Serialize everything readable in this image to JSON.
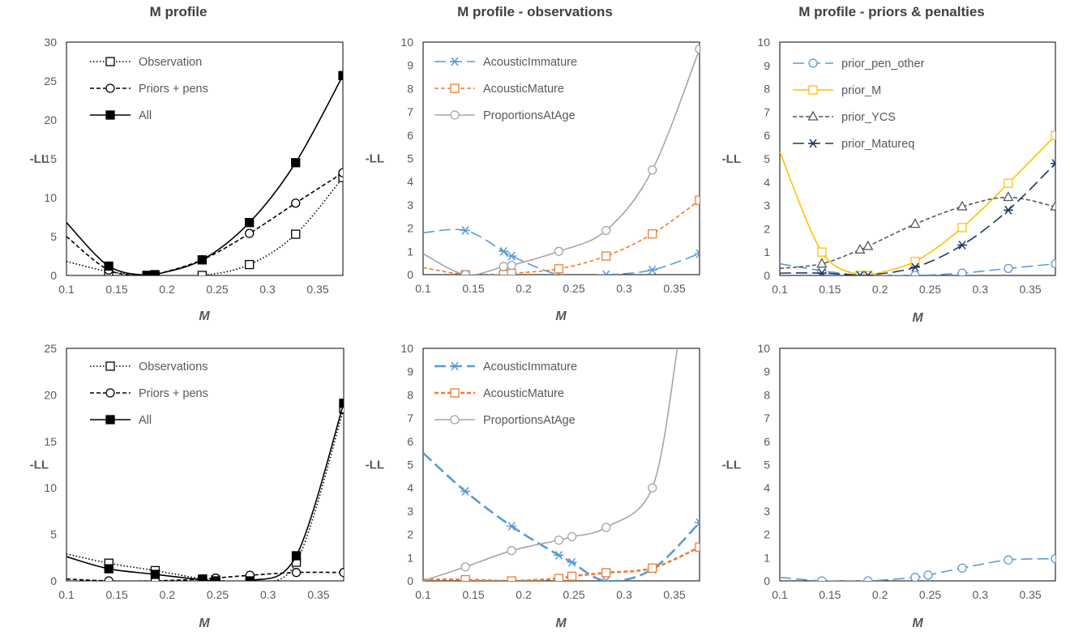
{
  "chart_data": [
    {
      "type": "line",
      "title": "M profile",
      "xlabel": "M",
      "ylabel": "-LL",
      "xlim": [
        0.1,
        0.375
      ],
      "ylim": [
        0,
        30
      ],
      "xticks": [
        "0.1",
        "0.15",
        "0.2",
        "0.25",
        "0.3",
        "0.35"
      ],
      "yticks": [
        "0",
        "5",
        "10",
        "15",
        "20",
        "25",
        "30"
      ],
      "legend": "top-left",
      "series": [
        {
          "name": "Observation",
          "color": "#000000",
          "dash": "dotted",
          "marker": "square-open",
          "markerFill": "#ffffff",
          "x": [
            0.1,
            0.142,
            0.18,
            0.188,
            0.235,
            0.282,
            0.328,
            0.375
          ],
          "y": [
            1.8,
            0.5,
            0.0,
            0.0,
            0.0,
            1.4,
            5.3,
            12.6
          ]
        },
        {
          "name": "Priors + pens",
          "color": "#000000",
          "dash": "dashed",
          "marker": "circle-open",
          "markerFill": "#ffffff",
          "x": [
            0.1,
            0.142,
            0.18,
            0.188,
            0.235,
            0.282,
            0.328,
            0.375
          ],
          "y": [
            5.0,
            0.7,
            0.0,
            0.1,
            2.0,
            5.4,
            9.3,
            13.2
          ]
        },
        {
          "name": "All",
          "color": "#000000",
          "dash": "solid",
          "marker": "square-filled",
          "markerFill": "#000000",
          "x": [
            0.1,
            0.142,
            0.18,
            0.188,
            0.235,
            0.282,
            0.328,
            0.375
          ],
          "y": [
            6.8,
            1.2,
            0.0,
            0.1,
            2.0,
            6.8,
            14.5,
            25.7
          ]
        }
      ]
    },
    {
      "type": "line",
      "title": "M profile - observations",
      "xlabel": "M",
      "ylabel": "-LL",
      "xlim": [
        0.1,
        0.375
      ],
      "ylim": [
        0,
        10
      ],
      "xticks": [
        "0.1",
        "0.15",
        "0.2",
        "0.25",
        "0.3",
        "0.35"
      ],
      "yticks": [
        "0",
        "1",
        "2",
        "3",
        "4",
        "5",
        "6",
        "7",
        "8",
        "9",
        "10"
      ],
      "legend": "top-left",
      "series": [
        {
          "name": "AcousticImmature",
          "color": "#5b9bd5",
          "dash": "longdash",
          "marker": "asterisk",
          "markerFill": "none",
          "x": [
            0.1,
            0.142,
            0.18,
            0.188,
            0.235,
            0.282,
            0.328,
            0.375
          ],
          "y": [
            1.8,
            1.9,
            1.0,
            0.8,
            0.0,
            0.0,
            0.2,
            0.9
          ]
        },
        {
          "name": "AcousticMature",
          "color": "#ed7d31",
          "dash": "dashed",
          "marker": "square-open",
          "markerFill": "#ffffff",
          "x": [
            0.1,
            0.142,
            0.18,
            0.188,
            0.235,
            0.282,
            0.328,
            0.375
          ],
          "y": [
            0.3,
            0.0,
            0.0,
            0.05,
            0.25,
            0.8,
            1.75,
            3.2
          ]
        },
        {
          "name": "ProportionsAtAge",
          "color": "#a5a5a5",
          "dash": "solid",
          "marker": "circle-open",
          "markerFill": "#ffffff",
          "x": [
            0.1,
            0.142,
            0.18,
            0.188,
            0.235,
            0.282,
            0.328,
            0.375
          ],
          "y": [
            0.9,
            0.0,
            0.35,
            0.4,
            1.0,
            1.9,
            4.5,
            9.7
          ]
        }
      ]
    },
    {
      "type": "line",
      "title": "M profile - priors & penalties",
      "xlabel": "M",
      "ylabel": "-LL",
      "xlim": [
        0.1,
        0.375
      ],
      "ylim": [
        0,
        10
      ],
      "xticks": [
        "0.1",
        "0.15",
        "0.2",
        "0.25",
        "0.3",
        "0.35"
      ],
      "yticks": [
        "0",
        "1",
        "2",
        "3",
        "4",
        "5",
        "6",
        "7",
        "8",
        "9",
        "10"
      ],
      "legend": "top-left",
      "series": [
        {
          "name": "prior_pen_other",
          "color": "#5b9bd5",
          "dash": "longdash",
          "marker": "circle-open",
          "markerFill": "#ffffff",
          "x": [
            0.1,
            0.142,
            0.18,
            0.188,
            0.235,
            0.282,
            0.328,
            0.375
          ],
          "y": [
            0.5,
            0.2,
            0.0,
            0.0,
            0.0,
            0.1,
            0.3,
            0.5
          ]
        },
        {
          "name": "prior_M",
          "color": "#ffc000",
          "dash": "solid",
          "marker": "square-open",
          "markerFill": "#ffffff",
          "x": [
            0.1,
            0.142,
            0.18,
            0.188,
            0.235,
            0.282,
            0.328,
            0.375
          ],
          "y": [
            5.3,
            1.0,
            0.0,
            0.0,
            0.6,
            2.05,
            3.95,
            6.0
          ]
        },
        {
          "name": "prior_YCS",
          "color": "#595959",
          "dash": "dashed",
          "marker": "triangle-open",
          "markerFill": "#ffffff",
          "x": [
            0.1,
            0.142,
            0.18,
            0.188,
            0.235,
            0.282,
            0.328,
            0.375
          ],
          "y": [
            0.3,
            0.5,
            1.1,
            1.25,
            2.2,
            2.95,
            3.35,
            2.95
          ]
        },
        {
          "name": "prior_Matureq",
          "color": "#203864",
          "dash": "longdash",
          "marker": "asterisk",
          "markerFill": "none",
          "x": [
            0.1,
            0.142,
            0.18,
            0.188,
            0.235,
            0.282,
            0.328,
            0.375
          ],
          "y": [
            0.1,
            0.1,
            0.0,
            0.0,
            0.35,
            1.3,
            2.8,
            4.8
          ]
        }
      ]
    },
    {
      "type": "line",
      "title": "",
      "xlabel": "M",
      "ylabel": "-LL",
      "xlim": [
        0.1,
        0.375
      ],
      "ylim": [
        0,
        25
      ],
      "xticks": [
        "0.1",
        "0.15",
        "0.2",
        "0.25",
        "0.3",
        "0.35"
      ],
      "yticks": [
        "0",
        "5",
        "10",
        "15",
        "20",
        "25"
      ],
      "legend": "top-left",
      "series": [
        {
          "name": "Observations",
          "color": "#000000",
          "dash": "dotted",
          "marker": "square-open",
          "markerFill": "#ffffff",
          "x": [
            0.1,
            0.142,
            0.188,
            0.235,
            0.248,
            0.282,
            0.328,
            0.375
          ],
          "y": [
            2.9,
            1.9,
            1.1,
            0.2,
            0.1,
            0.0,
            2.0,
            18.5
          ]
        },
        {
          "name": "Priors + pens",
          "color": "#000000",
          "dash": "dashed",
          "marker": "circle-open",
          "markerFill": "#ffffff",
          "x": [
            0.1,
            0.142,
            0.188,
            0.235,
            0.248,
            0.282,
            0.328,
            0.375
          ],
          "y": [
            0.2,
            0.0,
            0.0,
            0.2,
            0.3,
            0.6,
            0.9,
            0.9
          ]
        },
        {
          "name": "All",
          "color": "#000000",
          "dash": "solid",
          "marker": "square-filled",
          "markerFill": "#000000",
          "x": [
            0.1,
            0.142,
            0.188,
            0.235,
            0.248,
            0.282,
            0.328,
            0.375
          ],
          "y": [
            2.6,
            1.3,
            0.7,
            0.1,
            0.0,
            0.0,
            2.7,
            19.1
          ]
        }
      ]
    },
    {
      "type": "line",
      "title": "",
      "xlabel": "M",
      "ylabel": "-LL",
      "xlim": [
        0.1,
        0.375
      ],
      "ylim": [
        0,
        10
      ],
      "xticks": [
        "0.1",
        "0.15",
        "0.2",
        "0.25",
        "0.3",
        "0.35"
      ],
      "yticks": [
        "0",
        "1",
        "2",
        "3",
        "4",
        "5",
        "6",
        "7",
        "8",
        "9",
        "10"
      ],
      "legend": "top-left",
      "series": [
        {
          "name": "AcousticImmature",
          "color": "#5b9bd5",
          "dash": "longdash",
          "marker": "asterisk",
          "markerFill": "none",
          "width": 2.6,
          "x": [
            0.1,
            0.142,
            0.188,
            0.235,
            0.248,
            0.282,
            0.328,
            0.375
          ],
          "y": [
            5.5,
            3.85,
            2.35,
            1.1,
            0.8,
            0.0,
            0.5,
            2.5
          ]
        },
        {
          "name": "AcousticMature",
          "color": "#ed7d31",
          "dash": "dashed",
          "marker": "square-open",
          "markerFill": "#ffffff",
          "width": 2.6,
          "x": [
            0.1,
            0.142,
            0.188,
            0.235,
            0.248,
            0.282,
            0.328,
            0.375
          ],
          "y": [
            0.05,
            0.05,
            0.0,
            0.1,
            0.2,
            0.35,
            0.55,
            1.45
          ]
        },
        {
          "name": "ProportionsAtAge",
          "color": "#a5a5a5",
          "dash": "solid",
          "marker": "circle-open",
          "markerFill": "#ffffff",
          "x": [
            0.1,
            0.142,
            0.188,
            0.235,
            0.248,
            0.282,
            0.328,
            0.353
          ],
          "y": [
            0.0,
            0.6,
            1.3,
            1.75,
            1.9,
            2.3,
            4.0,
            10.0
          ]
        }
      ]
    },
    {
      "type": "line",
      "title": "",
      "xlabel": "M",
      "ylabel": "-LL",
      "xlim": [
        0.1,
        0.375
      ],
      "ylim": [
        0,
        10
      ],
      "xticks": [
        "0.1",
        "0.15",
        "0.2",
        "0.25",
        "0.3",
        "0.35"
      ],
      "yticks": [
        "0",
        "1",
        "2",
        "3",
        "4",
        "5",
        "6",
        "7",
        "8",
        "9",
        "10"
      ],
      "legend": "none",
      "series": [
        {
          "color": "#5b9bd5",
          "dash": "longdash",
          "marker": "circle-open",
          "markerFill": "#ffffff",
          "x": [
            0.1,
            0.142,
            0.188,
            0.235,
            0.248,
            0.282,
            0.328,
            0.375
          ],
          "y": [
            0.15,
            0.0,
            0.0,
            0.15,
            0.25,
            0.55,
            0.9,
            0.95
          ]
        }
      ]
    }
  ]
}
